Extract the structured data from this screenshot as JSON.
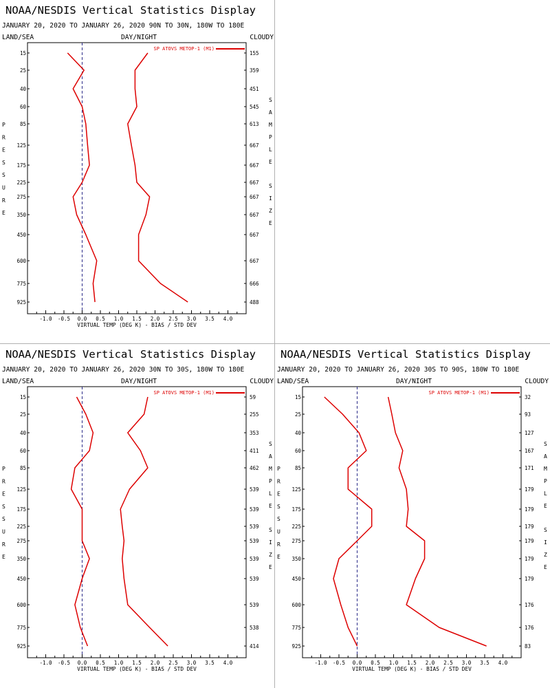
{
  "colors": {
    "line": "#dd0000",
    "axis": "#000000",
    "zero_line": "#2a2a88",
    "divider": "#b0b0b0"
  },
  "panels": [
    {
      "title": "NOAA/NESDIS Vertical Statistics Display",
      "subtitle": "JANUARY 20, 2020 TO JANUARY 26, 2020 90N TO 30N, 180W TO 180E",
      "header": {
        "left": "LAND/SEA",
        "center": "DAY/NIGHT",
        "right": "CLOUDY"
      },
      "legend": "SP ATOVS METOP-1 (M1)",
      "xlabel": "VIRTUAL TEMP (DEG K) - BIAS / STD DEV",
      "ylabel": "PRESSURE",
      "y2label": "SAMPLE SIZE",
      "y2label_parts": [
        "SAMPLE",
        "SIZE"
      ],
      "xticks": [
        "-1.0",
        "-0.5",
        "0.0",
        "0.5",
        "1.0",
        "1.5",
        "2.0",
        "2.5",
        "3.0",
        "3.5",
        "4.0"
      ],
      "chart_data": {
        "type": "line",
        "levels": [
          "15",
          "25",
          "40",
          "60",
          "85",
          "125",
          "175",
          "225",
          "275",
          "350",
          "450",
          "600",
          "775",
          "925"
        ],
        "sample_size": [
          "155",
          "359",
          "451",
          "545",
          "613",
          "667",
          "667",
          "667",
          "667",
          "667",
          "667",
          "667",
          "666",
          "488"
        ],
        "xlim": [
          -1.5,
          4.5
        ],
        "bias": [
          -0.4,
          0.05,
          -0.25,
          0.0,
          0.1,
          0.15,
          0.2,
          0.0,
          -0.25,
          -0.15,
          0.1,
          0.4,
          0.3,
          0.35
        ],
        "std_dev": [
          1.8,
          1.45,
          1.45,
          1.5,
          1.25,
          1.35,
          1.45,
          1.5,
          1.85,
          1.75,
          1.55,
          1.55,
          2.15,
          2.9
        ]
      }
    },
    {
      "title": "NOAA/NESDIS Vertical Statistics Display",
      "subtitle": "JANUARY 20, 2020 TO JANUARY 26, 2020 30N TO 30S, 180W TO 180E",
      "header": {
        "left": "LAND/SEA",
        "center": "DAY/NIGHT",
        "right": "CLOUDY"
      },
      "legend": "SP ATOVS METOP-1 (M1)",
      "xlabel": "VIRTUAL TEMP (DEG K) - BIAS / STD DEV",
      "ylabel": "PRESSURE",
      "y2label": "SAMPLE SIZE",
      "y2label_parts": [
        "SAMPLE",
        "SIZE"
      ],
      "xticks": [
        "-1.0",
        "-0.5",
        "0.0",
        "0.5",
        "1.0",
        "1.5",
        "2.0",
        "2.5",
        "3.0",
        "3.5",
        "4.0"
      ],
      "chart_data": {
        "type": "line",
        "levels": [
          "15",
          "25",
          "40",
          "60",
          "85",
          "125",
          "175",
          "225",
          "275",
          "350",
          "450",
          "600",
          "775",
          "925"
        ],
        "sample_size": [
          "59",
          "255",
          "353",
          "411",
          "462",
          "539",
          "539",
          "539",
          "539",
          "539",
          "539",
          "539",
          "538",
          "414"
        ],
        "xlim": [
          -1.5,
          4.5
        ],
        "bias": [
          -0.15,
          0.1,
          0.3,
          0.2,
          -0.2,
          -0.3,
          0.0,
          0.0,
          0.0,
          0.2,
          0.0,
          -0.2,
          -0.05,
          0.15
        ],
        "std_dev": [
          1.8,
          1.7,
          1.25,
          1.6,
          1.8,
          1.3,
          1.05,
          1.1,
          1.15,
          1.1,
          1.15,
          1.25,
          1.85,
          2.35
        ]
      }
    },
    {
      "title": "NOAA/NESDIS Vertical Statistics Display",
      "subtitle": "JANUARY 20, 2020 TO JANUARY 26, 2020 30S TO 90S, 180W TO 180E",
      "header": {
        "left": "LAND/SEA",
        "center": "DAY/NIGHT",
        "right": "CLOUDY"
      },
      "legend": "SP ATOVS METOP-1 (M1)",
      "xlabel": "VIRTUAL TEMP (DEG K) - BIAS / STD DEV",
      "ylabel": "PRESSURE",
      "y2label": "SAMPLE SIZE",
      "y2label_parts": [
        "SAMPLE",
        "SIZE"
      ],
      "xticks": [
        "-1.0",
        "-0.5",
        "0.0",
        "0.5",
        "1.0",
        "1.5",
        "2.0",
        "2.5",
        "3.0",
        "3.5",
        "4.0"
      ],
      "chart_data": {
        "type": "line",
        "levels": [
          "15",
          "25",
          "40",
          "60",
          "85",
          "125",
          "175",
          "225",
          "275",
          "350",
          "450",
          "600",
          "775",
          "925"
        ],
        "sample_size": [
          "32",
          "93",
          "127",
          "167",
          "171",
          "179",
          "179",
          "179",
          "179",
          "179",
          "179",
          "176",
          "176",
          "83"
        ],
        "xlim": [
          -1.5,
          4.5
        ],
        "bias": [
          -0.9,
          -0.4,
          0.05,
          0.25,
          -0.25,
          -0.25,
          0.4,
          0.4,
          0.0,
          -0.5,
          -0.65,
          -0.45,
          -0.25,
          0.0
        ],
        "std_dev": [
          0.85,
          0.95,
          1.05,
          1.25,
          1.15,
          1.35,
          1.4,
          1.35,
          1.85,
          1.85,
          1.6,
          1.35,
          2.25,
          3.55
        ]
      }
    }
  ]
}
